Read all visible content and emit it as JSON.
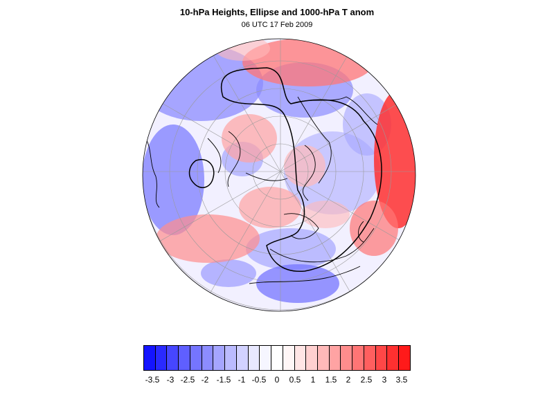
{
  "title": "10-hPa Heights, Ellipse and 1000-hPa T anom",
  "subtitle": "06 UTC 17 Feb 2009",
  "colorbar": {
    "colors": [
      "#1414ff",
      "#2a2aff",
      "#4646ff",
      "#5f5fff",
      "#7575ff",
      "#8c8cff",
      "#a5a5ff",
      "#bbbbff",
      "#d2d2ff",
      "#e8e8ff",
      "#f6f6ff",
      "#ffffff",
      "#fff6f6",
      "#ffe5e5",
      "#ffd0d0",
      "#ffb9b9",
      "#ffa3a3",
      "#ff8d8d",
      "#ff7575",
      "#ff5f5f",
      "#ff4747",
      "#ff3030",
      "#ff1a1a"
    ],
    "labels": [
      "-3.5",
      "-3",
      "-2.5",
      "-2",
      "-1.5",
      "-1",
      "-0.5",
      "0",
      "0.5",
      "1",
      "1.5",
      "2",
      "2.5",
      "3",
      "3.5"
    ]
  }
}
